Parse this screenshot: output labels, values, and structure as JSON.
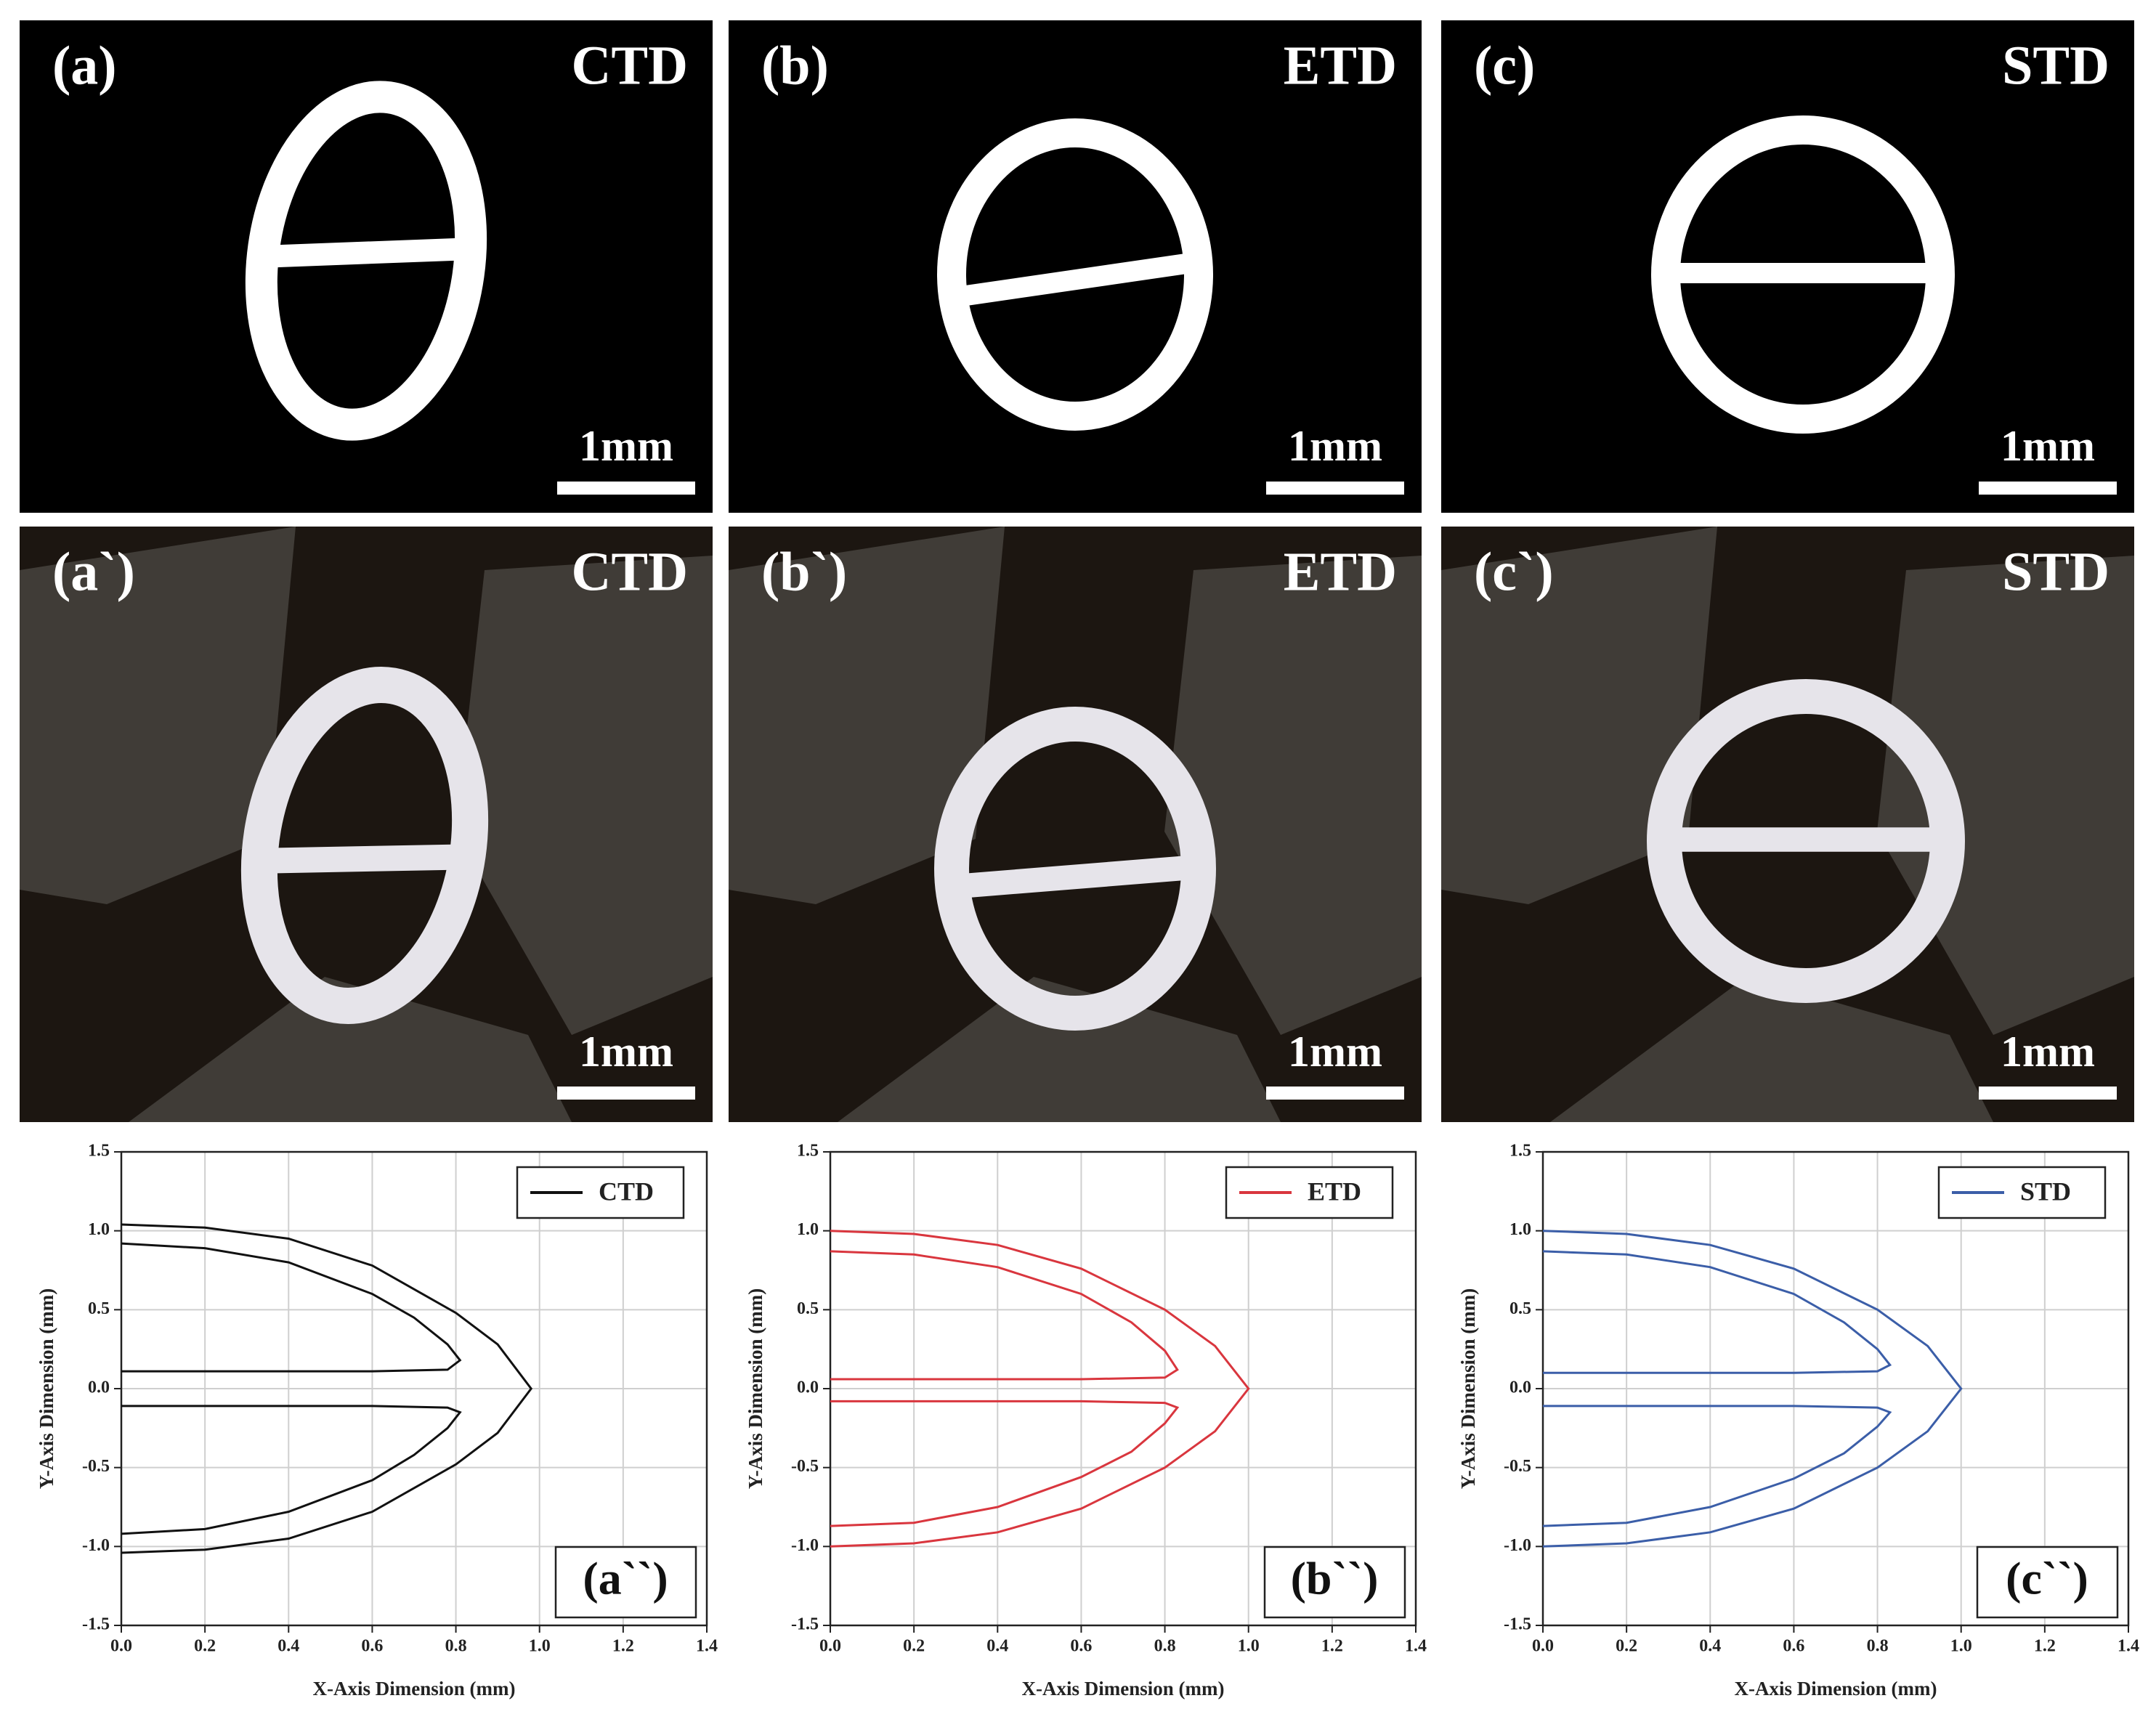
{
  "panels": [
    {
      "label": "(a)",
      "tag": "CTD",
      "scale": "1mm"
    },
    {
      "label": "(b)",
      "tag": "ETD",
      "scale": "1mm"
    },
    {
      "label": "(c)",
      "tag": "STD",
      "scale": "1mm"
    },
    {
      "label": "(a`)",
      "tag": "CTD",
      "scale": "1mm"
    },
    {
      "label": "(b`)",
      "tag": "ETD",
      "scale": "1mm"
    },
    {
      "label": "(c`)",
      "tag": "STD",
      "scale": "1mm"
    }
  ],
  "chart_data": [
    {
      "type": "line",
      "xlabel": "X-Axis Dimension (mm)",
      "ylabel": "Y-Axis Dimension (mm)",
      "panel_label": "(a``)",
      "xlim": [
        0,
        1.4
      ],
      "ylim": [
        -1.5,
        1.5
      ],
      "xticks": [
        {
          "value": 0,
          "label": "0.0"
        },
        0.2,
        0.4,
        0.6,
        0.8,
        {
          "value": 1,
          "label": "1.0"
        },
        1.2,
        1.4
      ],
      "yticks": [
        -1.5,
        {
          "value": -1,
          "label": "-1.0"
        },
        -0.5,
        {
          "value": 0,
          "label": "0.0"
        },
        0.5,
        {
          "value": 1,
          "label": "1.0"
        },
        1.5
      ],
      "grid": true,
      "legend": "upper right",
      "series": [
        {
          "name": "CTD",
          "color": "#111111",
          "x": [
            0,
            0.2,
            0.4,
            0.6,
            0.8,
            0.9,
            0.98,
            0.9,
            0.8,
            0.6,
            0.4,
            0.2,
            0,
            null,
            0,
            0.2,
            0.4,
            0.6,
            0.7,
            0.78,
            0.81,
            0.78,
            0.6,
            0,
            null,
            0,
            0.6,
            0.78,
            0.81,
            0.78,
            0.7,
            0.6,
            0.4,
            0.2,
            0
          ],
          "values": [
            1.04,
            1.02,
            0.95,
            0.78,
            0.48,
            0.28,
            0,
            -0.28,
            -0.48,
            -0.78,
            -0.95,
            -1.02,
            -1.04,
            null,
            0.92,
            0.89,
            0.8,
            0.6,
            0.45,
            0.28,
            0.18,
            0.12,
            0.11,
            0.11,
            null,
            -0.11,
            -0.11,
            -0.12,
            -0.15,
            -0.25,
            -0.42,
            -0.58,
            -0.78,
            -0.89,
            -0.92
          ]
        }
      ]
    },
    {
      "type": "line",
      "xlabel": "X-Axis Dimension (mm)",
      "ylabel": "Y-Axis Dimension (mm)",
      "panel_label": "(b``)",
      "xlim": [
        0,
        1.4
      ],
      "ylim": [
        -1.5,
        1.5
      ],
      "xticks": [
        {
          "value": 0,
          "label": "0.0"
        },
        0.2,
        0.4,
        0.6,
        0.8,
        {
          "value": 1,
          "label": "1.0"
        },
        1.2,
        1.4
      ],
      "yticks": [
        -1.5,
        {
          "value": -1,
          "label": "-1.0"
        },
        -0.5,
        {
          "value": 0,
          "label": "0.0"
        },
        0.5,
        {
          "value": 1,
          "label": "1.0"
        },
        1.5
      ],
      "grid": true,
      "legend": "upper right",
      "series": [
        {
          "name": "ETD",
          "color": "#d9363e",
          "x": [
            0,
            0.2,
            0.4,
            0.6,
            0.8,
            0.92,
            1,
            0.92,
            0.8,
            0.6,
            0.4,
            0.2,
            0,
            null,
            0,
            0.2,
            0.4,
            0.6,
            0.72,
            0.8,
            0.83,
            0.8,
            0.6,
            0,
            null,
            0,
            0.6,
            0.8,
            0.83,
            0.8,
            0.72,
            0.6,
            0.4,
            0.2,
            0
          ],
          "values": [
            1,
            0.98,
            0.91,
            0.76,
            0.5,
            0.27,
            0,
            -0.27,
            -0.5,
            -0.76,
            -0.91,
            -0.98,
            -1,
            null,
            0.87,
            0.85,
            0.77,
            0.6,
            0.42,
            0.24,
            0.12,
            0.07,
            0.06,
            0.06,
            null,
            -0.08,
            -0.08,
            -0.09,
            -0.12,
            -0.22,
            -0.4,
            -0.56,
            -0.75,
            -0.85,
            -0.87
          ]
        }
      ]
    },
    {
      "type": "line",
      "xlabel": "X-Axis Dimension (mm)",
      "ylabel": "Y-Axis Dimension (mm)",
      "panel_label": "(c``)",
      "xlim": [
        0,
        1.4
      ],
      "ylim": [
        -1.5,
        1.5
      ],
      "xticks": [
        {
          "value": 0,
          "label": "0.0"
        },
        0.2,
        0.4,
        0.6,
        0.8,
        {
          "value": 1,
          "label": "1.0"
        },
        1.2,
        1.4
      ],
      "yticks": [
        -1.5,
        {
          "value": -1,
          "label": "-1.0"
        },
        -0.5,
        {
          "value": 0,
          "label": "0.0"
        },
        0.5,
        {
          "value": 1,
          "label": "1.0"
        },
        1.5
      ],
      "grid": true,
      "legend": "upper right",
      "series": [
        {
          "name": "STD",
          "color": "#3b5ea8",
          "x": [
            0,
            0.2,
            0.4,
            0.6,
            0.8,
            0.92,
            1,
            0.92,
            0.8,
            0.6,
            0.4,
            0.2,
            0,
            null,
            0,
            0.2,
            0.4,
            0.6,
            0.72,
            0.8,
            0.83,
            0.8,
            0.6,
            0,
            null,
            0,
            0.6,
            0.8,
            0.83,
            0.8,
            0.72,
            0.6,
            0.4,
            0.2,
            0
          ],
          "values": [
            1,
            0.98,
            0.91,
            0.76,
            0.5,
            0.27,
            0,
            -0.27,
            -0.5,
            -0.76,
            -0.91,
            -0.98,
            -1,
            null,
            0.87,
            0.85,
            0.77,
            0.6,
            0.42,
            0.25,
            0.15,
            0.11,
            0.1,
            0.1,
            null,
            -0.11,
            -0.11,
            -0.12,
            -0.15,
            -0.24,
            -0.41,
            -0.57,
            -0.75,
            -0.85,
            -0.87
          ]
        }
      ]
    }
  ]
}
